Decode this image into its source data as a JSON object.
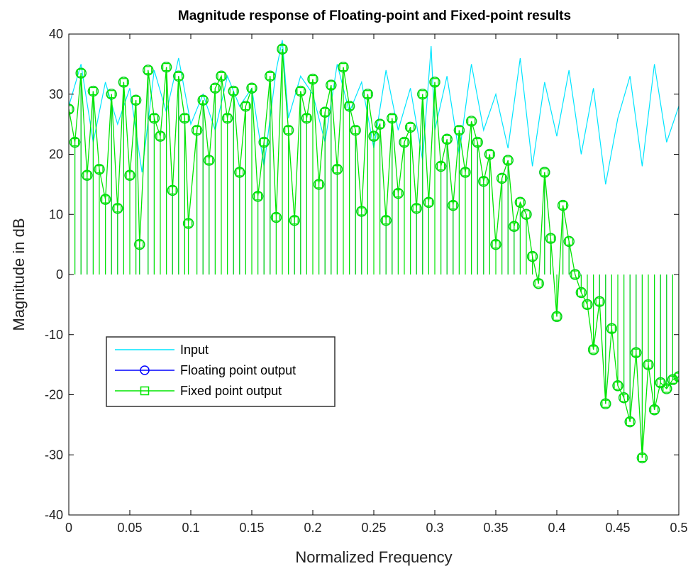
{
  "chart_data": {
    "type": "line",
    "title": "Magnitude response of Floating-point and Fixed-point results",
    "xlabel": "Normalized Frequency",
    "ylabel": "Magnitude in dB",
    "xlim": [
      0,
      0.5
    ],
    "ylim": [
      -40,
      40
    ],
    "xticks": [
      0,
      0.05,
      0.1,
      0.15,
      0.2,
      0.25,
      0.3,
      0.35,
      0.4,
      0.45,
      0.5
    ],
    "xtick_labels": [
      "0",
      "0.05",
      "0.1",
      "0.15",
      "0.2",
      "0.25",
      "0.3",
      "0.35",
      "0.4",
      "0.45",
      "0.5"
    ],
    "yticks": [
      -40,
      -30,
      -20,
      -10,
      0,
      10,
      20,
      30,
      40
    ],
    "ytick_labels": [
      "-40",
      "-30",
      "-20",
      "-10",
      "0",
      "10",
      "20",
      "30",
      "40"
    ],
    "grid": false,
    "legend_position": "lower-left",
    "series": [
      {
        "name": "Input",
        "style": "line",
        "color": "#00e5ff",
        "x": [
          0.0,
          0.01,
          0.02,
          0.03,
          0.04,
          0.05,
          0.06,
          0.07,
          0.08,
          0.09,
          0.1,
          0.11,
          0.12,
          0.13,
          0.14,
          0.15,
          0.16,
          0.17,
          0.175,
          0.18,
          0.19,
          0.2,
          0.21,
          0.22,
          0.23,
          0.24,
          0.25,
          0.26,
          0.27,
          0.28,
          0.29,
          0.297,
          0.3,
          0.31,
          0.32,
          0.33,
          0.34,
          0.35,
          0.36,
          0.37,
          0.38,
          0.39,
          0.4,
          0.41,
          0.42,
          0.43,
          0.44,
          0.45,
          0.46,
          0.47,
          0.48,
          0.49,
          0.5
        ],
        "y": [
          28,
          35,
          22,
          32,
          25,
          31,
          17,
          34,
          27,
          36,
          25,
          30,
          24,
          33,
          28,
          31,
          18,
          34,
          39,
          26,
          33,
          30,
          22,
          35,
          27,
          32,
          21,
          34,
          24,
          31,
          19,
          38,
          24,
          33,
          20,
          35,
          24,
          30,
          21,
          36,
          18,
          32,
          23,
          34,
          20,
          31,
          15,
          26,
          33,
          18,
          35,
          22,
          28
        ]
      },
      {
        "name": "Floating point output",
        "style": "stem-circle",
        "color": "#0000ff",
        "x": [
          0.0,
          0.005,
          0.01,
          0.015,
          0.02,
          0.025,
          0.03,
          0.035,
          0.04,
          0.045,
          0.05,
          0.055,
          0.058,
          0.065,
          0.07,
          0.075,
          0.08,
          0.085,
          0.09,
          0.095,
          0.098,
          0.105,
          0.11,
          0.115,
          0.12,
          0.125,
          0.13,
          0.135,
          0.14,
          0.145,
          0.15,
          0.155,
          0.16,
          0.165,
          0.17,
          0.175,
          0.18,
          0.185,
          0.19,
          0.195,
          0.2,
          0.205,
          0.21,
          0.215,
          0.22,
          0.225,
          0.23,
          0.235,
          0.24,
          0.245,
          0.25,
          0.255,
          0.26,
          0.265,
          0.27,
          0.275,
          0.28,
          0.285,
          0.29,
          0.295,
          0.3,
          0.305,
          0.31,
          0.315,
          0.32,
          0.325,
          0.33,
          0.335,
          0.34,
          0.345,
          0.35,
          0.355,
          0.36,
          0.365,
          0.37,
          0.375,
          0.38,
          0.385,
          0.39,
          0.395,
          0.4,
          0.405,
          0.41,
          0.415,
          0.42,
          0.425,
          0.43,
          0.435,
          0.44,
          0.445,
          0.45,
          0.455,
          0.46,
          0.465,
          0.47,
          0.475,
          0.48,
          0.485,
          0.49,
          0.495,
          0.5
        ],
        "y": [
          27.5,
          22,
          33.5,
          16.5,
          30.5,
          17.5,
          12.5,
          30,
          11,
          32,
          16.5,
          29,
          5,
          34,
          26,
          23,
          34.5,
          14,
          33,
          26,
          8.5,
          24,
          29,
          19,
          31,
          33,
          26,
          30.5,
          17,
          28,
          31,
          13,
          22,
          33,
          9.5,
          37.5,
          24,
          9,
          30.5,
          26,
          32.5,
          15,
          27,
          31.5,
          17.5,
          34.5,
          28,
          24,
          10.5,
          30,
          23,
          25,
          9,
          26,
          13.5,
          22,
          24.5,
          11,
          30,
          12,
          32,
          18,
          22.5,
          11.5,
          24,
          17,
          25.5,
          22,
          15.5,
          20,
          5,
          16,
          19,
          8,
          12,
          10,
          3,
          -1.5,
          17,
          6,
          -7,
          11.5,
          5.5,
          0,
          -3,
          -5,
          -12.5,
          -4.5,
          -21.5,
          -9,
          -18.5,
          -20.5,
          -24.5,
          -13,
          -30.5,
          -15,
          -22.5,
          -18,
          -19,
          -17.5,
          -17
        ]
      },
      {
        "name": "Fixed point output",
        "style": "stem-square",
        "color": "#00e600",
        "x": [
          0.0,
          0.005,
          0.01,
          0.015,
          0.02,
          0.025,
          0.03,
          0.035,
          0.04,
          0.045,
          0.05,
          0.055,
          0.058,
          0.065,
          0.07,
          0.075,
          0.08,
          0.085,
          0.09,
          0.095,
          0.098,
          0.105,
          0.11,
          0.115,
          0.12,
          0.125,
          0.13,
          0.135,
          0.14,
          0.145,
          0.15,
          0.155,
          0.16,
          0.165,
          0.17,
          0.175,
          0.18,
          0.185,
          0.19,
          0.195,
          0.2,
          0.205,
          0.21,
          0.215,
          0.22,
          0.225,
          0.23,
          0.235,
          0.24,
          0.245,
          0.25,
          0.255,
          0.26,
          0.265,
          0.27,
          0.275,
          0.28,
          0.285,
          0.29,
          0.295,
          0.3,
          0.305,
          0.31,
          0.315,
          0.32,
          0.325,
          0.33,
          0.335,
          0.34,
          0.345,
          0.35,
          0.355,
          0.36,
          0.365,
          0.37,
          0.375,
          0.38,
          0.385,
          0.39,
          0.395,
          0.4,
          0.405,
          0.41,
          0.415,
          0.42,
          0.425,
          0.43,
          0.435,
          0.44,
          0.445,
          0.45,
          0.455,
          0.46,
          0.465,
          0.47,
          0.475,
          0.48,
          0.485,
          0.49,
          0.495,
          0.5
        ],
        "y": [
          27.5,
          22,
          33.5,
          16.5,
          30.5,
          17.5,
          12.5,
          30,
          11,
          32,
          16.5,
          29,
          5,
          34,
          26,
          23,
          34.5,
          14,
          33,
          26,
          8.5,
          24,
          29,
          19,
          31,
          33,
          26,
          30.5,
          17,
          28,
          31,
          13,
          22,
          33,
          9.5,
          37.5,
          24,
          9,
          30.5,
          26,
          32.5,
          15,
          27,
          31.5,
          17.5,
          34.5,
          28,
          24,
          10.5,
          30,
          23,
          25,
          9,
          26,
          13.5,
          22,
          24.5,
          11,
          30,
          12,
          32,
          18,
          22.5,
          11.5,
          24,
          17,
          25.5,
          22,
          15.5,
          20,
          5,
          16,
          19,
          8,
          12,
          10,
          3,
          -1.5,
          17,
          6,
          -7,
          11.5,
          5.5,
          0,
          -3,
          -5,
          -12.5,
          -4.5,
          -21.5,
          -9,
          -18.5,
          -20.5,
          -24.5,
          -13,
          -30.5,
          -15,
          -22.5,
          -18,
          -19,
          -17.5,
          -17
        ]
      }
    ]
  }
}
